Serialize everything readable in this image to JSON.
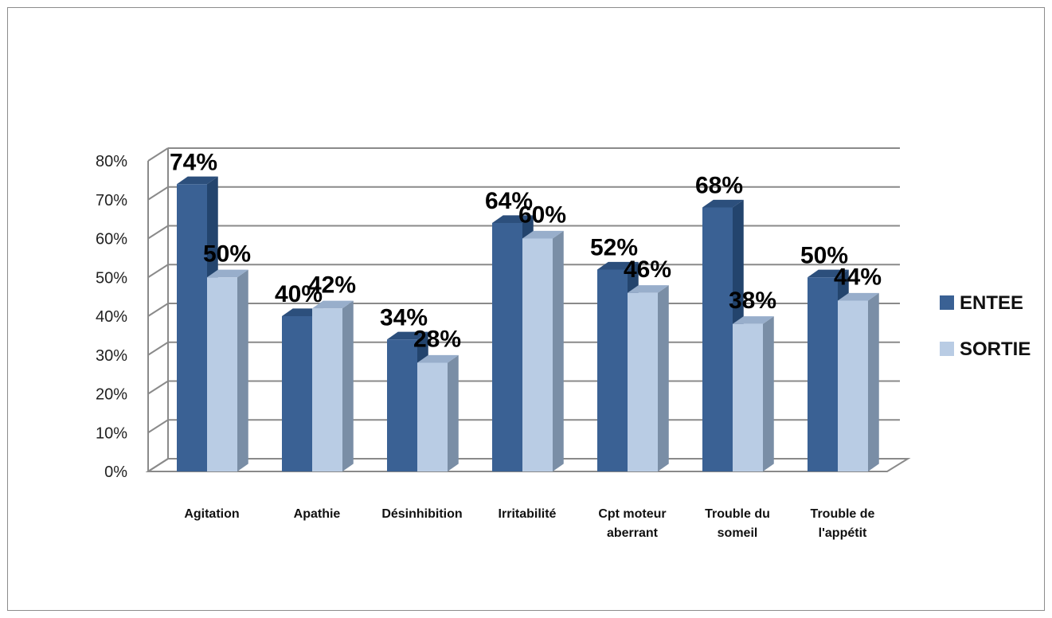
{
  "chart_data": {
    "type": "bar",
    "title": "",
    "xlabel": "",
    "ylabel": "",
    "categories": [
      [
        "Agitation"
      ],
      [
        "Apathie"
      ],
      [
        "Désinhibition"
      ],
      [
        "Irritabilité"
      ],
      [
        "Cpt moteur",
        "aberrant"
      ],
      [
        "Trouble du",
        "someil"
      ],
      [
        "Trouble de",
        "l'appétit"
      ]
    ],
    "series": [
      {
        "name": "ENTEE",
        "values": [
          74,
          40,
          34,
          64,
          52,
          68,
          50
        ],
        "labels": [
          "74%",
          "40%",
          "34%",
          "64%",
          "52%",
          "68%",
          "50%"
        ],
        "color": "#3a6194"
      },
      {
        "name": "SORTIE",
        "values": [
          50,
          42,
          28,
          60,
          46,
          38,
          44
        ],
        "labels": [
          "50%",
          "42%",
          "28%",
          "60%",
          "46%",
          "38%",
          "44%"
        ],
        "color": "#b9cce4"
      }
    ],
    "ylim": [
      0,
      80
    ],
    "yticks": [
      "0%",
      "10%",
      "20%",
      "30%",
      "40%",
      "50%",
      "60%",
      "70%",
      "80%"
    ],
    "grid": true,
    "legend": "right",
    "style": "3d-clustered-column"
  }
}
